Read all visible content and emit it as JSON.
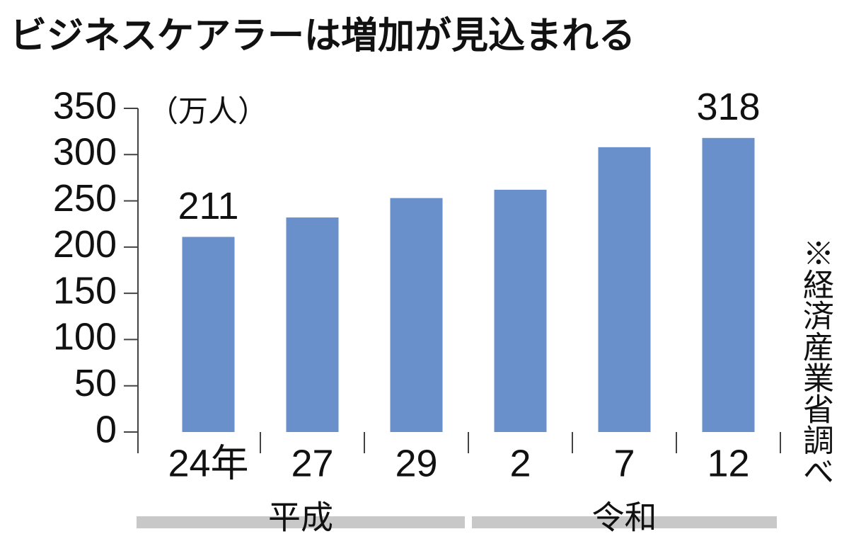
{
  "chart_data": {
    "type": "bar",
    "title": "ビジネスケアラーは増加が見込まれる",
    "unit_label": "（万人）",
    "source": "※経済産業省調べ",
    "categories": [
      "24年",
      "27",
      "29",
      "2",
      "7",
      "12"
    ],
    "values": [
      211,
      232,
      253,
      262,
      308,
      318
    ],
    "value_labels": [
      211,
      null,
      null,
      null,
      null,
      318
    ],
    "color": "#6990cb",
    "ylim": [
      0,
      350
    ],
    "yticks": [
      0,
      50,
      100,
      150,
      200,
      250,
      300,
      350
    ],
    "groups": [
      {
        "label": "平成",
        "size": 3
      },
      {
        "label": "令和",
        "size": 3
      }
    ],
    "grid": false
  }
}
